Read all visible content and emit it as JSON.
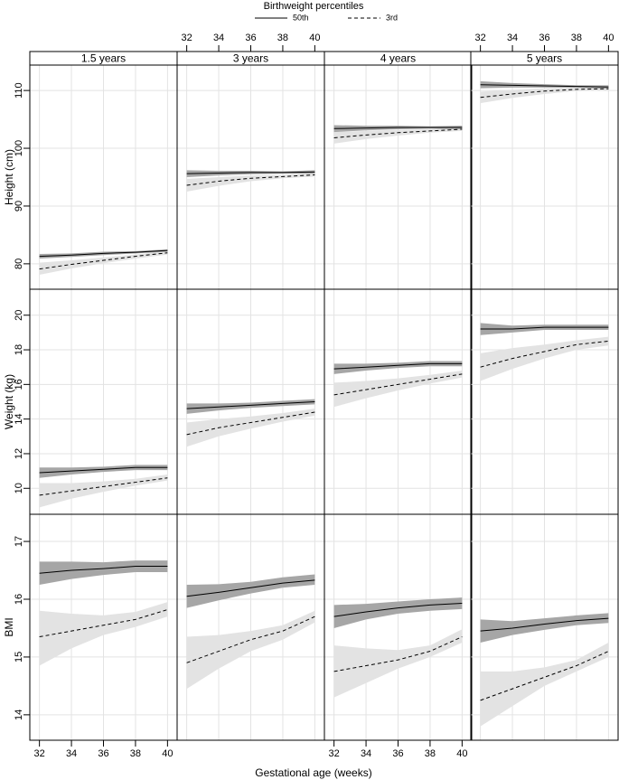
{
  "chart_data": {
    "type": "line",
    "legend_title": "Birthweight percentiles",
    "xlabel": "Gestational age (weeks)",
    "series": [
      {
        "name": "50th",
        "color": "#000000",
        "line_style": "solid",
        "band_color": "#a6a6a6"
      },
      {
        "name": "3rd",
        "color": "#000000",
        "line_style": "dashed",
        "band_color": "#e3e3e3"
      }
    ],
    "columns": [
      "1.5 years",
      "3 years",
      "4 years",
      "5 years"
    ],
    "x": [
      32,
      34,
      36,
      38,
      40
    ],
    "xlim": [
      31.4,
      40.6
    ],
    "xticks": [
      32,
      34,
      36,
      38,
      40
    ],
    "grid": true,
    "rows": [
      {
        "ylabel": "Height (cm)",
        "ylim": [
          75.6,
          114.4
        ],
        "yticks": [
          80,
          90,
          100,
          110
        ],
        "panels": [
          {
            "series": [
              {
                "values": [
                  81.3,
                  81.5,
                  81.8,
                  82.0,
                  82.3
                ],
                "lower": [
                  80.9,
                  81.2,
                  81.5,
                  81.8,
                  82.1
                ],
                "upper": [
                  81.7,
                  81.8,
                  82.1,
                  82.2,
                  82.5
                ]
              },
              {
                "values": [
                  79.1,
                  79.9,
                  80.6,
                  81.3,
                  81.9
                ],
                "lower": [
                  78.1,
                  79.2,
                  80.1,
                  80.9,
                  81.6
                ],
                "upper": [
                  80.2,
                  80.6,
                  81.1,
                  81.6,
                  82.2
                ]
              }
            ]
          },
          {
            "series": [
              {
                "values": [
                  95.6,
                  95.7,
                  95.8,
                  95.8,
                  95.9
                ],
                "lower": [
                  95.0,
                  95.3,
                  95.5,
                  95.6,
                  95.6
                ],
                "upper": [
                  96.2,
                  96.1,
                  96.1,
                  96.0,
                  96.2
                ]
              },
              {
                "values": [
                  93.6,
                  94.3,
                  94.8,
                  95.1,
                  95.4
                ],
                "lower": [
                  92.5,
                  93.5,
                  94.3,
                  94.8,
                  95.1
                ],
                "upper": [
                  94.7,
                  95.0,
                  95.3,
                  95.4,
                  95.7
                ]
              }
            ]
          },
          {
            "series": [
              {
                "values": [
                  103.4,
                  103.5,
                  103.6,
                  103.6,
                  103.6
                ],
                "lower": [
                  102.8,
                  103.1,
                  103.3,
                  103.4,
                  103.3
                ],
                "upper": [
                  104.0,
                  103.9,
                  103.9,
                  103.8,
                  103.9
                ]
              },
              {
                "values": [
                  101.8,
                  102.3,
                  102.7,
                  103.0,
                  103.3
                ],
                "lower": [
                  100.8,
                  101.6,
                  102.2,
                  102.7,
                  103.0
                ],
                "upper": [
                  102.8,
                  103.0,
                  103.2,
                  103.3,
                  103.6
                ]
              }
            ]
          },
          {
            "series": [
              {
                "values": [
                  111.0,
                  110.9,
                  110.8,
                  110.7,
                  110.6
                ],
                "lower": [
                  110.4,
                  110.5,
                  110.5,
                  110.5,
                  110.3
                ],
                "upper": [
                  111.6,
                  111.3,
                  111.1,
                  110.9,
                  110.9
                ]
              },
              {
                "values": [
                  108.8,
                  109.4,
                  109.9,
                  110.2,
                  110.3
                ],
                "lower": [
                  107.8,
                  108.7,
                  109.4,
                  109.9,
                  110.0
                ],
                "upper": [
                  109.8,
                  110.1,
                  110.4,
                  110.5,
                  110.6
                ]
              }
            ]
          }
        ]
      },
      {
        "ylabel": "Weight (kg)",
        "ylim": [
          8.5,
          21.5
        ],
        "yticks": [
          10,
          12,
          14,
          16,
          18,
          20
        ],
        "panels": [
          {
            "series": [
              {
                "values": [
                  10.9,
                  11.0,
                  11.1,
                  11.2,
                  11.2
                ],
                "lower": [
                  10.6,
                  10.8,
                  10.95,
                  11.05,
                  11.05
                ],
                "upper": [
                  11.2,
                  11.2,
                  11.25,
                  11.35,
                  11.35
                ]
              },
              {
                "values": [
                  9.6,
                  9.85,
                  10.1,
                  10.35,
                  10.6
                ],
                "lower": [
                  8.9,
                  9.4,
                  9.8,
                  10.15,
                  10.45
                ],
                "upper": [
                  10.3,
                  10.3,
                  10.4,
                  10.55,
                  10.8
                ]
              }
            ]
          },
          {
            "series": [
              {
                "values": [
                  14.6,
                  14.7,
                  14.8,
                  14.9,
                  15.0
                ],
                "lower": [
                  14.3,
                  14.5,
                  14.65,
                  14.75,
                  14.85
                ],
                "upper": [
                  14.9,
                  14.9,
                  14.95,
                  15.05,
                  15.15
                ]
              },
              {
                "values": [
                  13.1,
                  13.5,
                  13.8,
                  14.1,
                  14.4
                ],
                "lower": [
                  12.4,
                  13.0,
                  13.45,
                  13.85,
                  14.2
                ],
                "upper": [
                  13.8,
                  14.0,
                  14.15,
                  14.35,
                  14.6
                ]
              }
            ]
          },
          {
            "series": [
              {
                "values": [
                  16.9,
                  17.0,
                  17.1,
                  17.2,
                  17.2
                ],
                "lower": [
                  16.6,
                  16.8,
                  16.95,
                  17.05,
                  17.05
                ],
                "upper": [
                  17.2,
                  17.2,
                  17.25,
                  17.35,
                  17.35
                ]
              },
              {
                "values": [
                  15.4,
                  15.7,
                  16.0,
                  16.3,
                  16.6
                ],
                "lower": [
                  14.7,
                  15.2,
                  15.65,
                  16.05,
                  16.4
                ],
                "upper": [
                  16.1,
                  16.2,
                  16.35,
                  16.55,
                  16.8
                ]
              }
            ]
          },
          {
            "series": [
              {
                "values": [
                  19.2,
                  19.2,
                  19.3,
                  19.3,
                  19.3
                ],
                "lower": [
                  18.85,
                  19.0,
                  19.15,
                  19.15,
                  19.15
                ],
                "upper": [
                  19.55,
                  19.4,
                  19.45,
                  19.45,
                  19.45
                ]
              },
              {
                "values": [
                  17.0,
                  17.5,
                  17.9,
                  18.3,
                  18.5
                ],
                "lower": [
                  16.2,
                  16.9,
                  17.5,
                  18.0,
                  18.25
                ],
                "upper": [
                  17.8,
                  18.1,
                  18.3,
                  18.55,
                  18.75
                ]
              }
            ]
          }
        ]
      },
      {
        "ylabel": "BMI",
        "ylim": [
          13.56,
          17.47
        ],
        "yticks": [
          14,
          15,
          16,
          17
        ],
        "panels": [
          {
            "series": [
              {
                "values": [
                  16.45,
                  16.5,
                  16.53,
                  16.57,
                  16.57
                ],
                "lower": [
                  16.25,
                  16.35,
                  16.42,
                  16.47,
                  16.47
                ],
                "upper": [
                  16.65,
                  16.65,
                  16.64,
                  16.67,
                  16.67
                ]
              },
              {
                "values": [
                  15.35,
                  15.45,
                  15.55,
                  15.65,
                  15.82
                ],
                "lower": [
                  14.85,
                  15.15,
                  15.38,
                  15.52,
                  15.7
                ],
                "upper": [
                  15.8,
                  15.75,
                  15.72,
                  15.78,
                  15.95
                ]
              }
            ]
          },
          {
            "series": [
              {
                "values": [
                  16.05,
                  16.12,
                  16.2,
                  16.28,
                  16.33
                ],
                "lower": [
                  15.85,
                  15.98,
                  16.1,
                  16.2,
                  16.25
                ],
                "upper": [
                  16.25,
                  16.26,
                  16.3,
                  16.38,
                  16.43
                ]
              },
              {
                "values": [
                  14.9,
                  15.1,
                  15.3,
                  15.45,
                  15.7
                ],
                "lower": [
                  14.45,
                  14.8,
                  15.1,
                  15.3,
                  15.6
                ],
                "upper": [
                  15.35,
                  15.38,
                  15.45,
                  15.55,
                  15.8
                ]
              }
            ]
          },
          {
            "series": [
              {
                "values": [
                  15.7,
                  15.78,
                  15.85,
                  15.9,
                  15.93
                ],
                "lower": [
                  15.5,
                  15.65,
                  15.75,
                  15.8,
                  15.83
                ],
                "upper": [
                  15.9,
                  15.92,
                  15.96,
                  16.0,
                  16.03
                ]
              },
              {
                "values": [
                  14.75,
                  14.85,
                  14.95,
                  15.1,
                  15.35
                ],
                "lower": [
                  14.3,
                  14.55,
                  14.8,
                  15.0,
                  15.25
                ],
                "upper": [
                  15.2,
                  15.15,
                  15.12,
                  15.2,
                  15.48
                ]
              }
            ]
          },
          {
            "series": [
              {
                "values": [
                  15.45,
                  15.5,
                  15.57,
                  15.63,
                  15.67
                ],
                "lower": [
                  15.25,
                  15.38,
                  15.47,
                  15.55,
                  15.59
                ],
                "upper": [
                  15.65,
                  15.62,
                  15.67,
                  15.72,
                  15.76
                ]
              },
              {
                "values": [
                  14.25,
                  14.45,
                  14.65,
                  14.85,
                  15.1
                ],
                "lower": [
                  13.8,
                  14.15,
                  14.5,
                  14.75,
                  15.0
                ],
                "upper": [
                  14.75,
                  14.75,
                  14.82,
                  14.95,
                  15.25
                ]
              }
            ]
          }
        ]
      }
    ]
  }
}
